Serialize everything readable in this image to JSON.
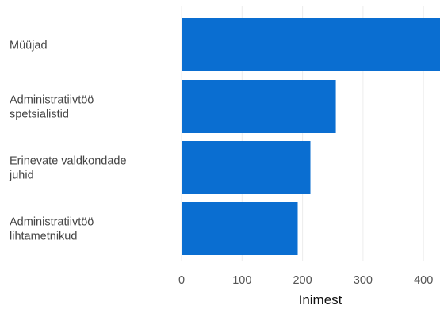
{
  "chart_data": {
    "type": "bar",
    "orientation": "horizontal",
    "categories": [
      [
        "Müüjad"
      ],
      [
        "Administratiivtöö",
        "spetsialistid"
      ],
      [
        "Erinevate valdkondade",
        "juhid"
      ],
      [
        "Administratiivtöö",
        "lihtametnikud"
      ]
    ],
    "values": [
      430,
      255,
      213,
      192
    ],
    "xlabel": "Inimest",
    "xlim": [
      0,
      430
    ],
    "xticks": [
      0,
      100,
      200,
      300,
      400
    ],
    "grid": true,
    "bar_color": "#0a6ed1"
  }
}
